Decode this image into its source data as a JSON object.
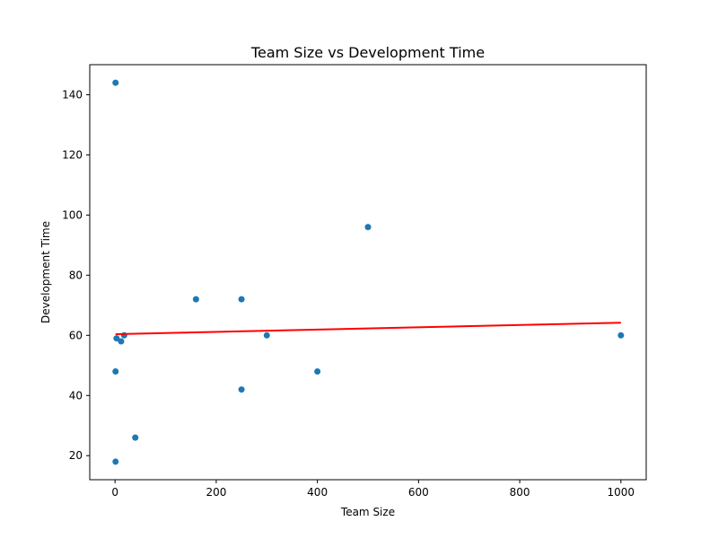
{
  "chart_data": {
    "type": "scatter",
    "title": "Team Size vs Development Time",
    "xlabel": "Team Size",
    "ylabel": "Development Time",
    "xlim": [
      -50,
      1050
    ],
    "ylim": [
      12,
      150
    ],
    "xticks": [
      0,
      200,
      400,
      600,
      800,
      1000
    ],
    "yticks": [
      20,
      40,
      60,
      80,
      100,
      120,
      140
    ],
    "grid": false,
    "points": [
      {
        "x": 1,
        "y": 144
      },
      {
        "x": 1,
        "y": 48
      },
      {
        "x": 1,
        "y": 18
      },
      {
        "x": 3,
        "y": 59
      },
      {
        "x": 12,
        "y": 58
      },
      {
        "x": 18,
        "y": 60
      },
      {
        "x": 40,
        "y": 26
      },
      {
        "x": 160,
        "y": 72
      },
      {
        "x": 250,
        "y": 72
      },
      {
        "x": 250,
        "y": 42
      },
      {
        "x": 300,
        "y": 60
      },
      {
        "x": 400,
        "y": 48
      },
      {
        "x": 500,
        "y": 96
      },
      {
        "x": 1000,
        "y": 60
      }
    ],
    "trendline": {
      "x0": 1,
      "y0": 60.4,
      "x1": 1000,
      "y1": 64.2
    },
    "colors": {
      "points": "#1f77b4",
      "trendline": "#ff0000"
    }
  }
}
